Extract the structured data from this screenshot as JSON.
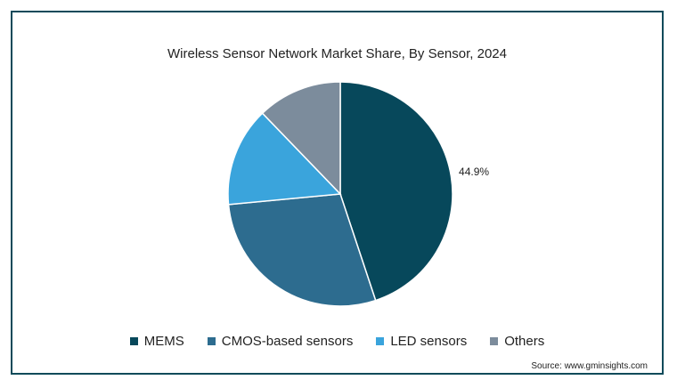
{
  "chart_data": {
    "type": "pie",
    "title": "Wireless Sensor Network Market Share, By Sensor, 2024",
    "categories": [
      "MEMS",
      "CMOS-based sensors",
      "LED sensors",
      "Others"
    ],
    "values": [
      44.9,
      28.6,
      14.3,
      12.2
    ],
    "data_labels": [
      "44.9%",
      "",
      "",
      ""
    ],
    "colors": [
      "#07485b",
      "#2d6c8f",
      "#3aa4dc",
      "#7c8c9c"
    ],
    "legend_position": "bottom",
    "source": "Source: www.gminsights.com"
  }
}
